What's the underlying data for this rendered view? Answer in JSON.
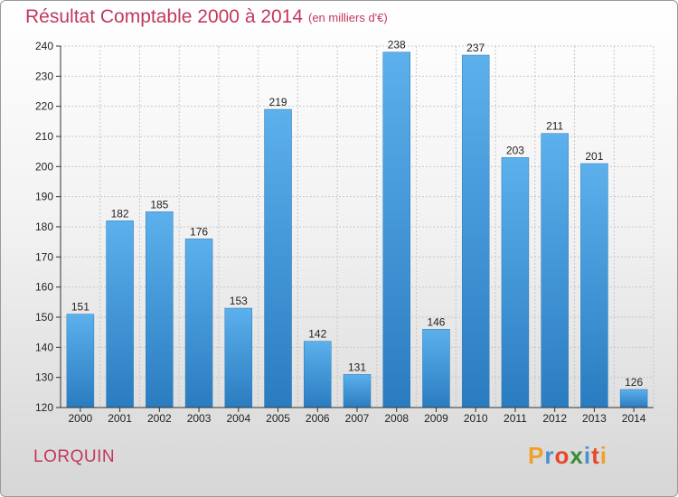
{
  "title": "Résultat Comptable 2000 à 2014",
  "subtitle": "(en milliers d'€)",
  "place": "LORQUIN",
  "logo": {
    "letters": [
      "P",
      "r",
      "o",
      "x",
      "i",
      "t",
      "i"
    ],
    "colors": [
      "#f0a028",
      "#4a90d0",
      "#e8462a",
      "#3c8c3c",
      "#4a90d0",
      "#e8462a",
      "#f0a028"
    ]
  },
  "colors": {
    "title": "#c0395e",
    "bar_light": "#5cb0ec",
    "bar_dark": "#2a7cc0",
    "grid": "#c8c8c8"
  },
  "chart_data": {
    "type": "bar",
    "title": "Résultat Comptable 2000 à 2014",
    "subtitle": "(en milliers d'€)",
    "xlabel": "",
    "ylabel": "",
    "categories": [
      "2000",
      "2001",
      "2002",
      "2003",
      "2004",
      "2005",
      "2006",
      "2007",
      "2008",
      "2009",
      "2010",
      "2011",
      "2012",
      "2013",
      "2014"
    ],
    "values": [
      151,
      182,
      185,
      176,
      153,
      219,
      142,
      131,
      238,
      146,
      237,
      203,
      211,
      201,
      126
    ],
    "ylim": [
      120,
      240
    ],
    "yticks": [
      120,
      130,
      140,
      150,
      160,
      170,
      180,
      190,
      200,
      210,
      220,
      230,
      240
    ],
    "grid": true,
    "data_labels": true
  }
}
